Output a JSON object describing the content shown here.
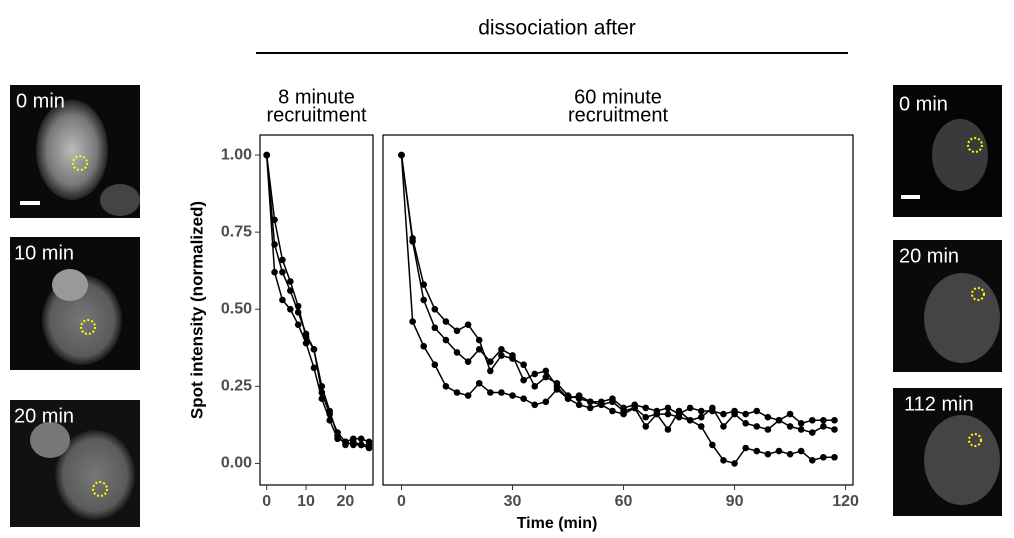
{
  "header": "dissociation after",
  "images": {
    "left": [
      "0 min",
      "10 min",
      "20 min"
    ],
    "right": [
      "0 min",
      "20 min",
      "112 min"
    ]
  },
  "chart_data": [
    {
      "type": "line",
      "title": [
        "8 minute",
        "recruitment"
      ],
      "ylabel": "Spot  intensity (normalized)",
      "x": [
        0,
        2,
        4,
        6,
        8,
        10,
        12,
        14,
        16,
        18,
        20,
        22,
        24,
        26
      ],
      "xlim": [
        -1.7,
        27
      ],
      "xticks": [
        0,
        10,
        20
      ],
      "ylim": [
        -0.07,
        1.065
      ],
      "yticks": [
        {
          "value": 0,
          "label": "0.00"
        },
        {
          "value": 0.25,
          "label": "0.25"
        },
        {
          "value": 0.5,
          "label": "0.50"
        },
        {
          "value": 0.75,
          "label": "0.75"
        },
        {
          "value": 1,
          "label": "1.00"
        }
      ],
      "series": [
        {
          "color": "#000000",
          "values": [
            1.0,
            0.79,
            0.66,
            0.59,
            0.51,
            0.41,
            0.37,
            0.23,
            0.16,
            0.1,
            0.07,
            0.08,
            0.08,
            0.07
          ]
        },
        {
          "color": "#000000",
          "values": [
            1.0,
            0.71,
            0.62,
            0.56,
            0.49,
            0.42,
            0.37,
            0.25,
            0.17,
            0.09,
            0.06,
            0.07,
            0.06,
            0.05
          ]
        },
        {
          "color": "#000000",
          "values": [
            1.0,
            0.62,
            0.53,
            0.5,
            0.45,
            0.39,
            0.31,
            0.21,
            0.14,
            0.08,
            0.07,
            0.06,
            0.06,
            0.06
          ]
        }
      ]
    },
    {
      "type": "line",
      "title": [
        "60 minute",
        "recruitment"
      ],
      "xlabel": "Time (min)",
      "x": [
        0,
        3,
        6,
        9,
        12,
        15,
        18,
        21,
        24,
        27,
        30,
        33,
        36,
        39,
        42,
        45,
        48,
        51,
        54,
        57,
        60,
        63,
        66,
        69,
        72,
        75,
        78,
        81,
        84,
        87,
        90,
        93,
        96,
        99,
        102,
        105,
        108,
        111,
        114,
        117
      ],
      "xlim": [
        -5,
        122
      ],
      "xticks": [
        0,
        30,
        60,
        90,
        120
      ],
      "ylim": [
        -0.07,
        1.065
      ],
      "series": [
        {
          "color": "#000000",
          "values": [
            1.0,
            0.73,
            0.58,
            0.5,
            0.46,
            0.43,
            0.45,
            0.4,
            0.3,
            0.35,
            0.34,
            0.32,
            0.25,
            0.28,
            0.26,
            0.22,
            0.21,
            0.2,
            0.2,
            0.21,
            0.18,
            0.19,
            0.18,
            0.17,
            0.18,
            0.16,
            0.18,
            0.17,
            0.17,
            0.16,
            0.17,
            0.16,
            0.17,
            0.15,
            0.14,
            0.16,
            0.13,
            0.14,
            0.14,
            0.14
          ]
        },
        {
          "color": "#000000",
          "values": [
            1.0,
            0.72,
            0.53,
            0.44,
            0.4,
            0.36,
            0.33,
            0.37,
            0.33,
            0.37,
            0.35,
            0.27,
            0.29,
            0.3,
            0.25,
            0.21,
            0.22,
            0.2,
            0.19,
            0.2,
            0.17,
            0.18,
            0.12,
            0.16,
            0.11,
            0.17,
            0.14,
            0.15,
            0.18,
            0.12,
            0.16,
            0.13,
            0.12,
            0.11,
            0.14,
            0.12,
            0.11,
            0.1,
            0.12,
            0.11
          ]
        },
        {
          "color": "#000000",
          "values": [
            1.0,
            0.46,
            0.38,
            0.32,
            0.25,
            0.23,
            0.22,
            0.26,
            0.23,
            0.23,
            0.22,
            0.21,
            0.19,
            0.2,
            0.24,
            0.21,
            0.19,
            0.18,
            0.19,
            0.17,
            0.16,
            0.18,
            0.15,
            0.16,
            0.16,
            0.15,
            0.14,
            0.12,
            0.06,
            0.01,
            0.0,
            0.05,
            0.04,
            0.03,
            0.04,
            0.03,
            0.04,
            0.01,
            0.02,
            0.02
          ]
        }
      ]
    }
  ]
}
